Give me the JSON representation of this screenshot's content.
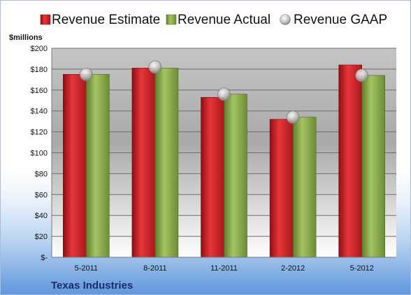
{
  "chart_data": {
    "type": "bar",
    "categories": [
      "5-2011",
      "8-2011",
      "11-2011",
      "2-2012",
      "5-2012"
    ],
    "series": [
      {
        "name": "Revenue Estimate",
        "kind": "bar",
        "color": "#d8262b",
        "values": [
          175,
          181,
          153,
          132,
          184
        ]
      },
      {
        "name": "Revenue Actual",
        "kind": "bar",
        "color": "#8fb24e",
        "values": [
          175,
          181,
          156,
          134,
          174
        ]
      },
      {
        "name": "Revenue GAAP",
        "kind": "marker",
        "color": "#c9c9c9",
        "values": [
          175,
          182,
          156,
          134,
          174
        ]
      }
    ],
    "ylabel": "$millions",
    "ylim": [
      0,
      200
    ],
    "ytick_values": [
      0,
      20,
      40,
      60,
      80,
      100,
      120,
      140,
      160,
      180,
      200
    ],
    "ytick_labels": [
      "$-",
      "$20",
      "$40",
      "$60",
      "$80",
      "$100",
      "$120",
      "$140",
      "$160",
      "$180",
      "$200"
    ],
    "grid": true,
    "legend_position": "top",
    "footer": "Texas Industries"
  }
}
